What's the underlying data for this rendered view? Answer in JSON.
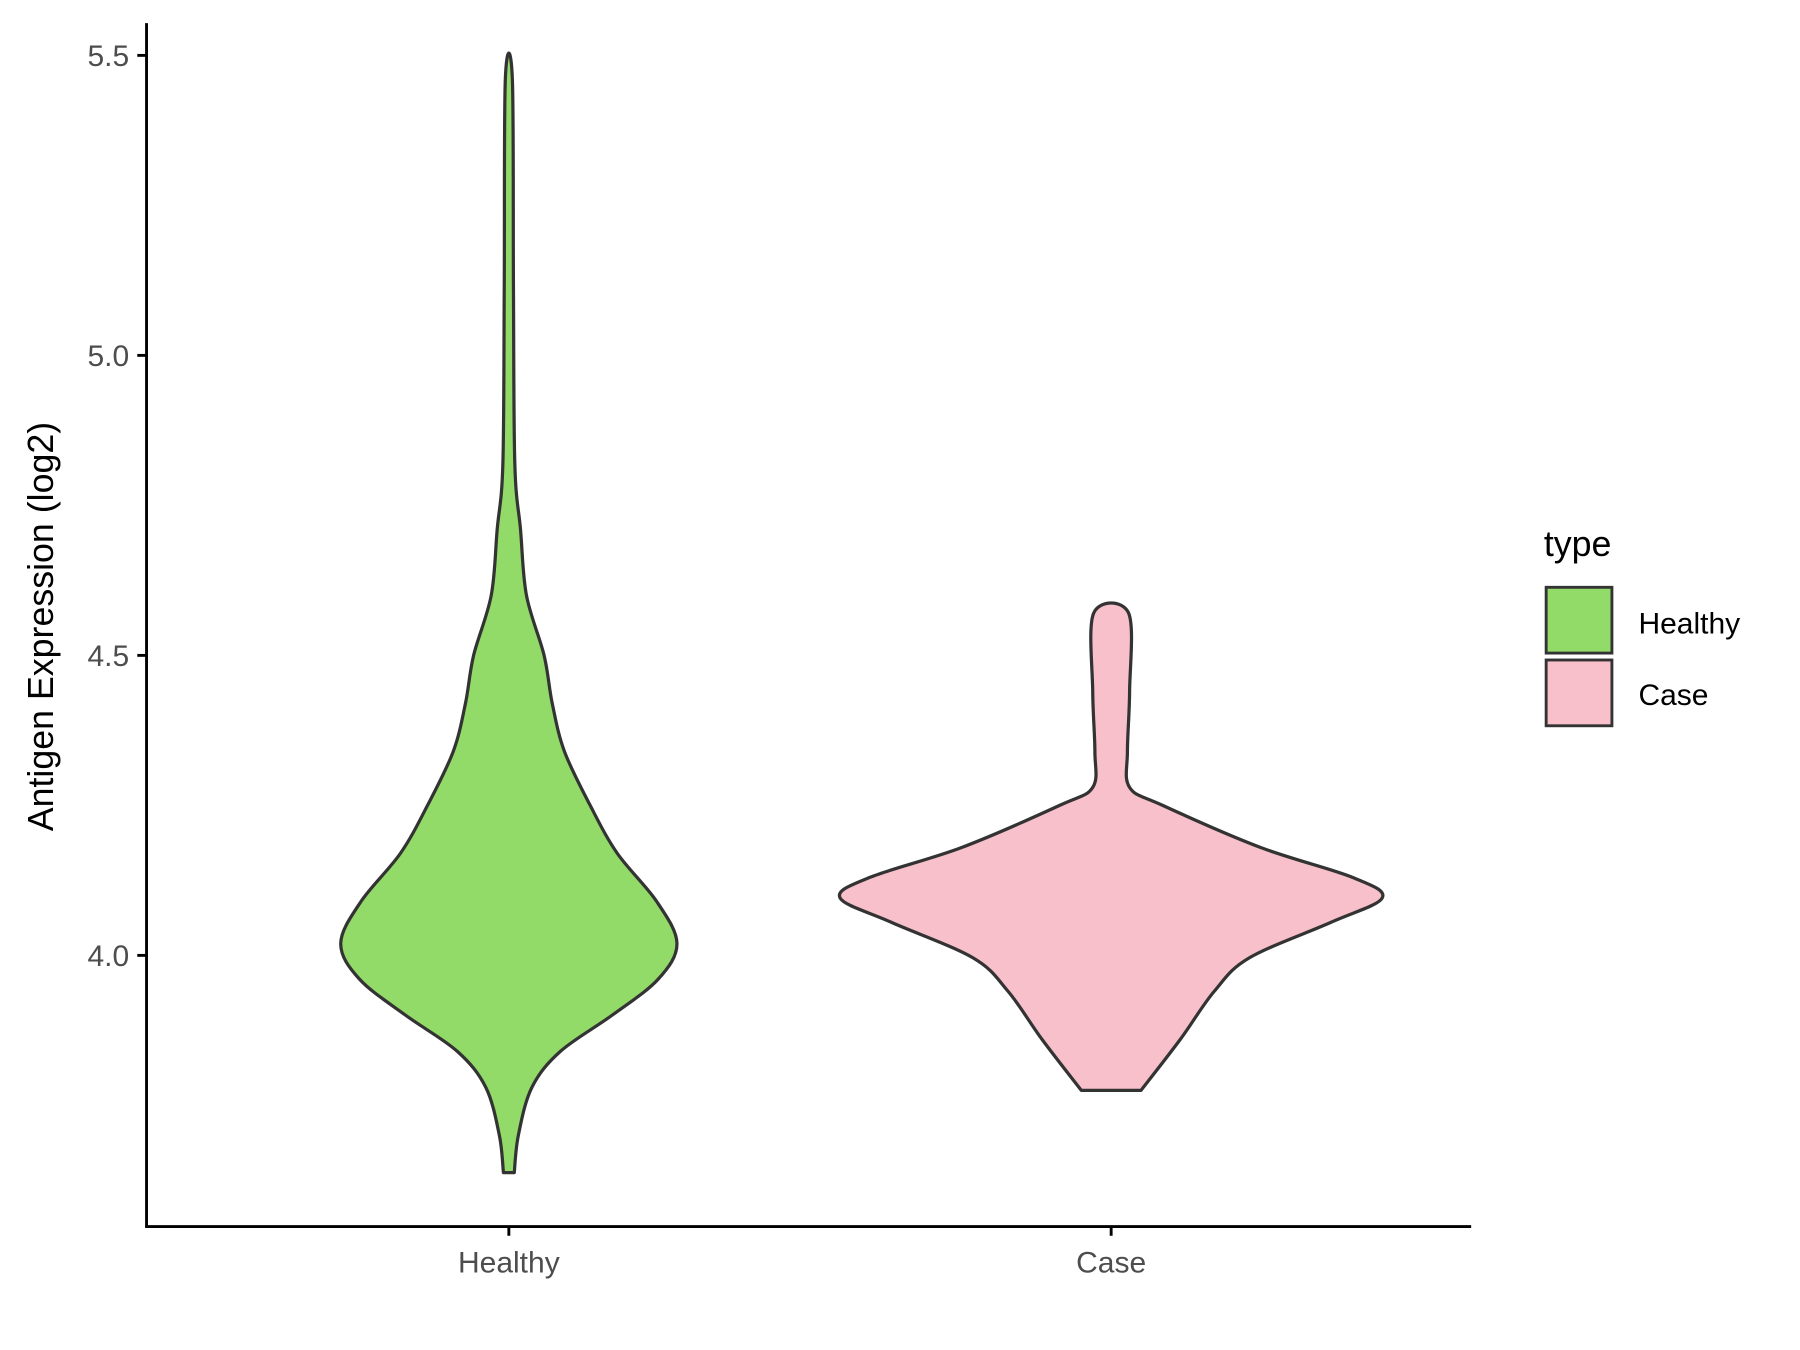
{
  "chart_data": {
    "type": "violin",
    "title": "",
    "xlabel": "",
    "ylabel": "Antigen Expression (log2)",
    "ylim": [
      3.55,
      5.55
    ],
    "yticks": [
      "4.0",
      "4.5",
      "5.0",
      "5.5"
    ],
    "ytick_values": [
      4.0,
      4.5,
      5.0,
      5.5
    ],
    "categories": [
      "Healthy",
      "Case"
    ],
    "legend": {
      "title": "type",
      "position": "right",
      "entries": [
        "Healthy",
        "Case"
      ]
    },
    "series": [
      {
        "name": "Healthy",
        "color": "#93DB69",
        "min": 3.638,
        "max": 5.46,
        "profile": [
          [
            3.638,
            0.02
          ],
          [
            3.7,
            0.035
          ],
          [
            3.78,
            0.085
          ],
          [
            3.84,
            0.19
          ],
          [
            3.9,
            0.38
          ],
          [
            3.96,
            0.55
          ],
          [
            4.02,
            0.62
          ],
          [
            4.09,
            0.545
          ],
          [
            4.17,
            0.4
          ],
          [
            4.25,
            0.3
          ],
          [
            4.34,
            0.205
          ],
          [
            4.42,
            0.16
          ],
          [
            4.5,
            0.13
          ],
          [
            4.6,
            0.065
          ],
          [
            4.71,
            0.043
          ],
          [
            4.82,
            0.022
          ],
          [
            5.11,
            0.017
          ],
          [
            5.46,
            0.013
          ]
        ]
      },
      {
        "name": "Case",
        "color": "#F8C0CB",
        "min": 3.775,
        "max": 4.571,
        "profile": [
          [
            3.775,
            0.11
          ],
          [
            3.86,
            0.255
          ],
          [
            3.94,
            0.38
          ],
          [
            3.996,
            0.51
          ],
          [
            4.055,
            0.81
          ],
          [
            4.096,
            1.0
          ],
          [
            4.13,
            0.89
          ],
          [
            4.18,
            0.55
          ],
          [
            4.25,
            0.19
          ],
          [
            4.28,
            0.068
          ],
          [
            4.34,
            0.06
          ],
          [
            4.44,
            0.068
          ],
          [
            4.571,
            0.064
          ]
        ]
      }
    ]
  }
}
